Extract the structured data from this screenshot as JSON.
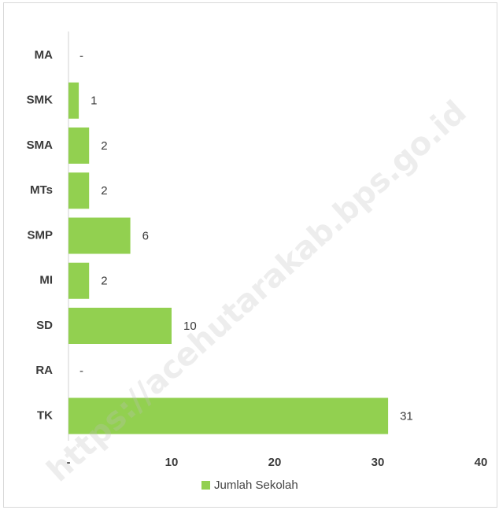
{
  "chart_data": {
    "type": "bar",
    "orientation": "horizontal",
    "categories": [
      "MA",
      "SMK",
      "SMA",
      "MTs",
      "SMP",
      "MI",
      "SD",
      "RA",
      "TK"
    ],
    "series": [
      {
        "name": "Jumlah Sekolah",
        "values": [
          null,
          1,
          2,
          2,
          6,
          2,
          10,
          null,
          31
        ],
        "data_labels": [
          "-",
          "1",
          "2",
          "2",
          "6",
          "2",
          "10",
          "-",
          "31"
        ],
        "color": "#92d050"
      }
    ],
    "xlim": [
      0,
      40
    ],
    "x_ticks": [
      0,
      10,
      20,
      30,
      40
    ],
    "x_tick_labels": [
      "-",
      "10",
      "20",
      "30",
      "40"
    ],
    "grid": false,
    "legend_position": "bottom"
  },
  "watermark": "https://acehutarakab.bps.go.id"
}
